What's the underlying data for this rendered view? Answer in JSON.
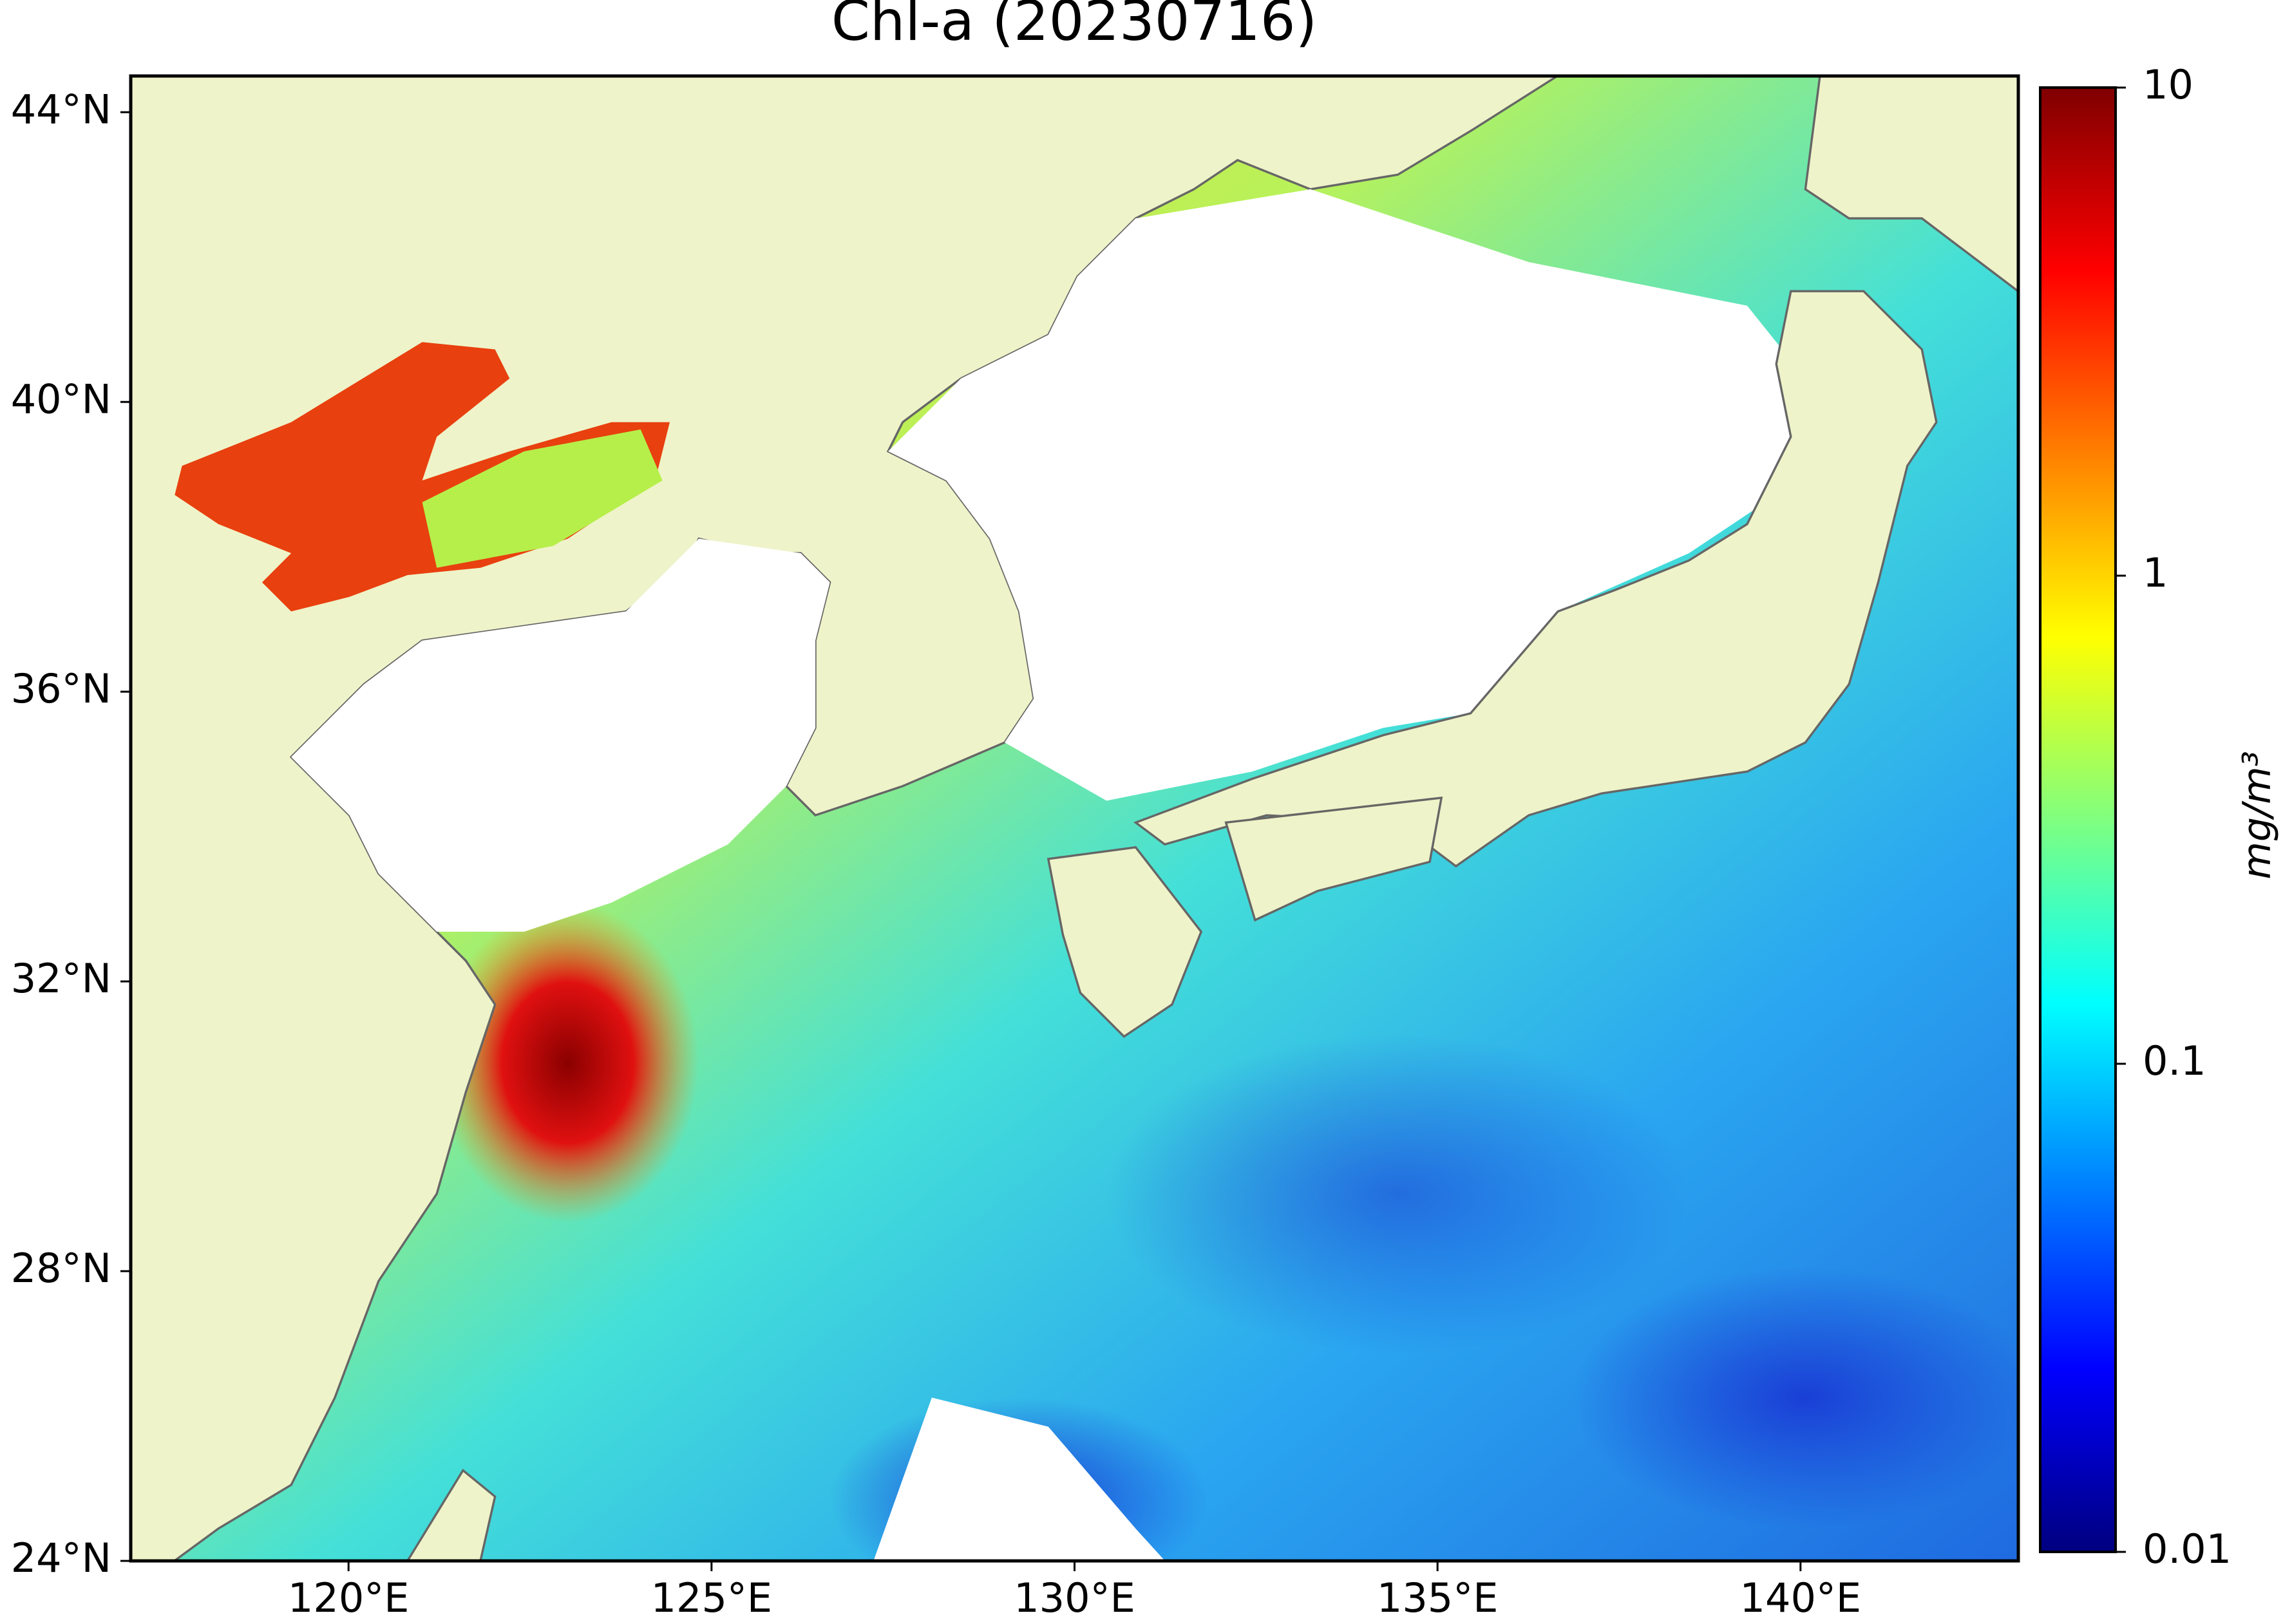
{
  "chart_data": {
    "type": "map",
    "title": "Chl-a (20230716)",
    "xlim": [
      117,
      143
    ],
    "ylim": [
      24,
      44.5
    ],
    "xticks": [
      {
        "value": 120,
        "label": "120°E"
      },
      {
        "value": 125,
        "label": "125°E"
      },
      {
        "value": 130,
        "label": "130°E"
      },
      {
        "value": 135,
        "label": "135°E"
      },
      {
        "value": 140,
        "label": "140°E"
      }
    ],
    "yticks": [
      {
        "value": 24,
        "label": "24°N"
      },
      {
        "value": 28,
        "label": "28°N"
      },
      {
        "value": 32,
        "label": "32°N"
      },
      {
        "value": 36,
        "label": "36°N"
      },
      {
        "value": 40,
        "label": "40°N"
      },
      {
        "value": 44,
        "label": "44°N"
      }
    ],
    "colorbar": {
      "scale": "log",
      "lim": [
        0.01,
        10
      ],
      "ticks": [
        0.01,
        0.1,
        1,
        10
      ],
      "label": "mg/m³"
    }
  }
}
